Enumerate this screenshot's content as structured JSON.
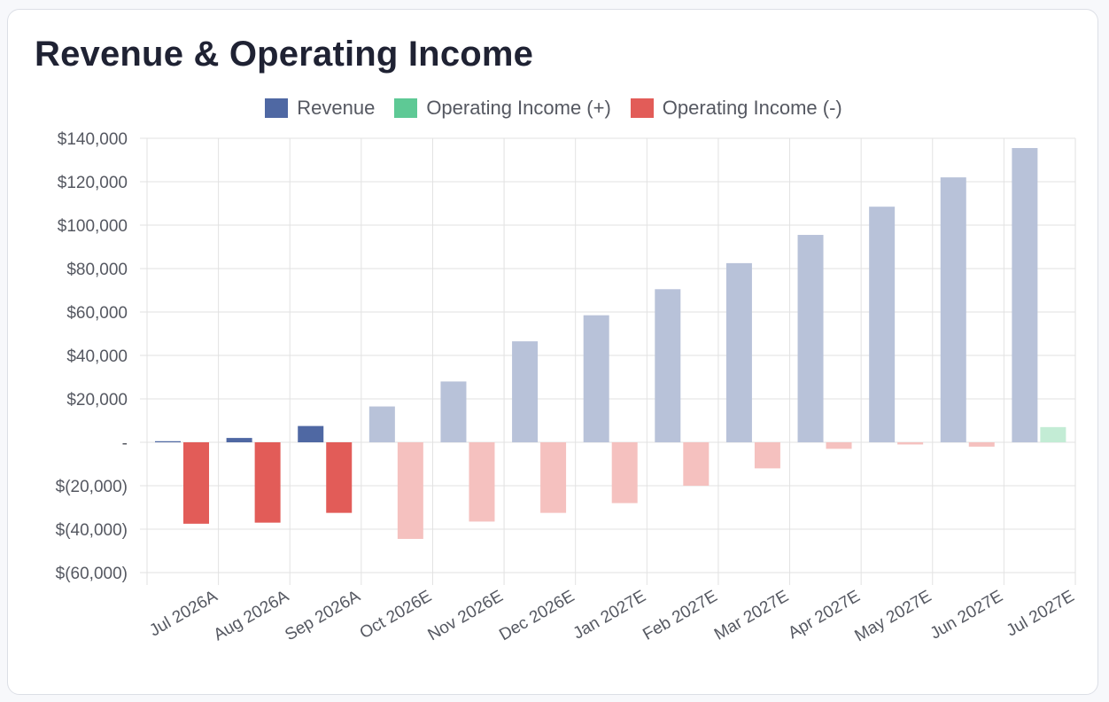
{
  "chart_data": {
    "type": "bar",
    "title": "Revenue & Operating Income",
    "categories": [
      "Jul 2026A",
      "Aug 2026A",
      "Sep 2026A",
      "Oct 2026E",
      "Nov 2026E",
      "Dec 2026E",
      "Jan 2027E",
      "Feb 2027E",
      "Mar 2027E",
      "Apr 2027E",
      "May 2027E",
      "Jun 2027E",
      "Jul 2027E"
    ],
    "actual_count": 3,
    "series": [
      {
        "name": "Revenue",
        "values": [
          500,
          2000,
          7500,
          16500,
          28000,
          46500,
          58500,
          70500,
          82500,
          95500,
          108500,
          122000,
          135500
        ]
      },
      {
        "name": "Operating Income",
        "values": [
          -37500,
          -37000,
          -32500,
          -44500,
          -36500,
          -32500,
          -28000,
          -20000,
          -12000,
          -3000,
          -1000,
          -2000,
          7000
        ]
      }
    ],
    "legend": [
      {
        "label": "Revenue",
        "color": "#4f68a3"
      },
      {
        "label": "Operating Income (+)",
        "color": "#5ec995"
      },
      {
        "label": "Operating Income (-)",
        "color": "#e25c58"
      }
    ],
    "colors": {
      "revenue_actual": "#4f68a3",
      "revenue_estimate": "#b8c2d9",
      "income_neg_actual": "#e25c58",
      "income_neg_estimate": "#f5c1bf",
      "income_pos_actual": "#5ec995",
      "income_pos_estimate": "#c3ecd5",
      "grid": "#e2e2e2"
    },
    "y_ticks": [
      140000,
      120000,
      100000,
      80000,
      60000,
      40000,
      20000,
      0,
      -20000,
      -40000,
      -60000
    ],
    "y_tick_labels": [
      "$140,000",
      "$120,000",
      "$100,000",
      "$80,000",
      "$60,000",
      "$40,000",
      "$20,000",
      "-",
      "$(20,000)",
      "$(40,000)",
      "$(60,000)"
    ],
    "ylim": [
      -60000,
      140000
    ],
    "grid": true,
    "legend_position": "top-center"
  }
}
